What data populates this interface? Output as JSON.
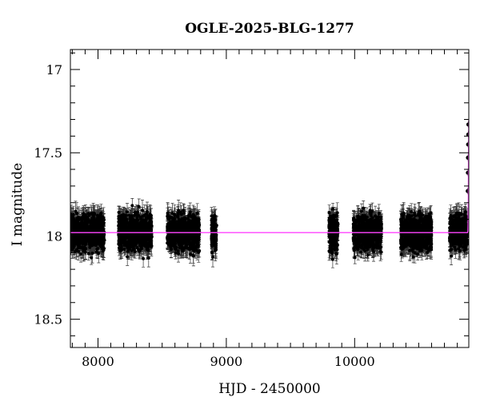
{
  "chart_data": {
    "type": "scatter",
    "title": "OGLE-2025-BLG-1277",
    "xlabel": "HJD - 2450000",
    "ylabel": "I magnitude",
    "xlim": [
      7785,
      10890
    ],
    "ylim": [
      18.67,
      16.88
    ],
    "y_inverted": true,
    "grid": false,
    "legend": "none",
    "x_major_ticks": [
      8000,
      9000,
      10000
    ],
    "x_tick_labels": [
      "8000",
      "9000",
      "10000"
    ],
    "y_major_ticks": [
      17,
      17.5,
      18,
      18.5
    ],
    "y_tick_labels": [
      "17",
      "17.5",
      "18",
      "18.5"
    ],
    "series": [
      {
        "type": "scatter_with_errorbars",
        "color": "#000000",
        "baseline_mag": 17.98,
        "typical_error": 0.05,
        "seasons": [
          {
            "start": 7790,
            "end": 8050,
            "mean": 17.98,
            "scatter": 0.06
          },
          {
            "start": 8160,
            "end": 8420,
            "mean": 17.98,
            "scatter": 0.06
          },
          {
            "start": 8540,
            "end": 8790,
            "mean": 17.98,
            "scatter": 0.06
          },
          {
            "start": 8885,
            "end": 8925,
            "mean": 17.99,
            "scatter": 0.06
          },
          {
            "start": 9800,
            "end": 9870,
            "mean": 17.98,
            "scatter": 0.07
          },
          {
            "start": 9990,
            "end": 10210,
            "mean": 17.98,
            "scatter": 0.06
          },
          {
            "start": 10360,
            "end": 10600,
            "mean": 17.98,
            "scatter": 0.06
          },
          {
            "start": 10740,
            "end": 10880,
            "mean": 17.98,
            "scatter": 0.06
          }
        ],
        "event_points": [
          {
            "x": 10882,
            "y": 17.73
          },
          {
            "x": 10883,
            "y": 17.62
          },
          {
            "x": 10884,
            "y": 17.53
          },
          {
            "x": 10885,
            "y": 17.45
          },
          {
            "x": 10886,
            "y": 17.39
          },
          {
            "x": 10887,
            "y": 17.33
          }
        ]
      },
      {
        "type": "line",
        "color": "#ff44ff",
        "points": [
          {
            "x": 7785,
            "y": 17.98
          },
          {
            "x": 10880,
            "y": 17.98
          },
          {
            "x": 10883,
            "y": 17.97
          },
          {
            "x": 10885,
            "y": 17.9
          },
          {
            "x": 10886,
            "y": 17.75
          },
          {
            "x": 10887,
            "y": 17.6
          },
          {
            "x": 10888,
            "y": 17.45
          },
          {
            "x": 10890,
            "y": 17.3
          }
        ]
      }
    ]
  }
}
